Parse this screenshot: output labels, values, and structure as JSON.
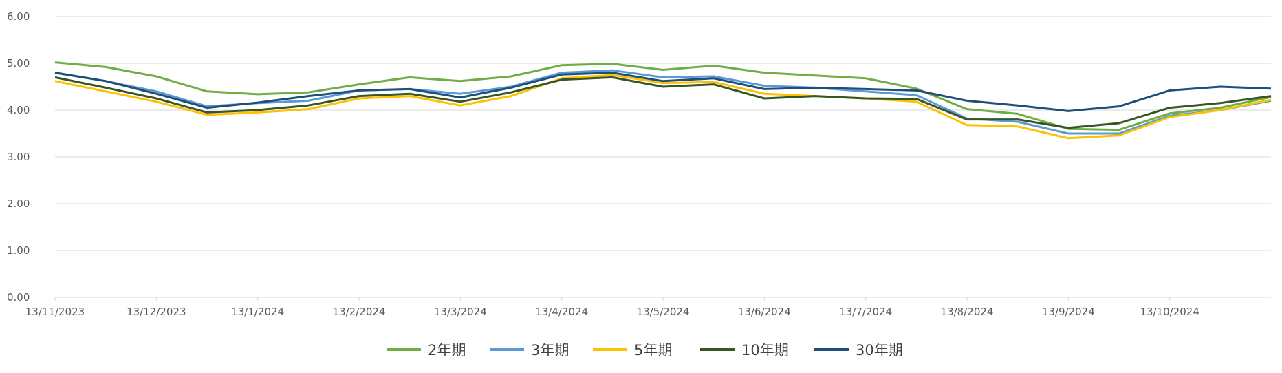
{
  "chart_data": {
    "type": "line",
    "title": "",
    "xlabel": "",
    "ylabel": "",
    "ylim": [
      0,
      6
    ],
    "y_ticks": [
      "0.00",
      "1.00",
      "2.00",
      "3.00",
      "4.00",
      "5.00",
      "6.00"
    ],
    "grid": true,
    "legend_position": "bottom",
    "x_ticks": [
      "13/11/2023",
      "13/12/2023",
      "13/1/2024",
      "13/2/2024",
      "13/3/2024",
      "13/4/2024",
      "13/5/2024",
      "13/6/2024",
      "13/7/2024",
      "13/8/2024",
      "13/9/2024",
      "13/10/2024"
    ],
    "x": [
      "13/11/2023",
      "27/11/2023",
      "13/12/2023",
      "27/12/2023",
      "13/1/2024",
      "27/1/2024",
      "13/2/2024",
      "27/2/2024",
      "13/3/2024",
      "27/3/2024",
      "13/4/2024",
      "27/4/2024",
      "13/5/2024",
      "27/5/2024",
      "13/6/2024",
      "27/6/2024",
      "13/7/2024",
      "27/7/2024",
      "13/8/2024",
      "27/8/2024",
      "13/9/2024",
      "27/9/2024",
      "13/10/2024",
      "27/10/2024",
      "12/11/2024"
    ],
    "series": [
      {
        "name": "2年期",
        "color": "#70ad47",
        "values": [
          5.02,
          4.92,
          4.72,
          4.4,
          4.34,
          4.38,
          4.55,
          4.7,
          4.62,
          4.72,
          4.96,
          4.99,
          4.86,
          4.95,
          4.8,
          4.74,
          4.68,
          4.46,
          4.02,
          3.92,
          3.6,
          3.58,
          3.93,
          4.05,
          4.28
        ]
      },
      {
        "name": "3年期",
        "color": "#5b9bd5",
        "values": [
          4.8,
          4.62,
          4.4,
          4.08,
          4.15,
          4.2,
          4.42,
          4.45,
          4.35,
          4.5,
          4.8,
          4.85,
          4.7,
          4.72,
          4.52,
          4.48,
          4.4,
          4.32,
          3.82,
          3.75,
          3.5,
          3.5,
          3.88,
          4.0,
          4.2
        ]
      },
      {
        "name": "5年期",
        "color": "#ffc000",
        "values": [
          4.62,
          4.4,
          4.18,
          3.9,
          3.95,
          4.02,
          4.25,
          4.3,
          4.1,
          4.3,
          4.68,
          4.75,
          4.58,
          4.6,
          4.35,
          4.3,
          4.25,
          4.18,
          3.68,
          3.65,
          3.4,
          3.46,
          3.85,
          4.0,
          4.22
        ]
      },
      {
        "name": "10年期",
        "color": "#375623",
        "values": [
          4.7,
          4.48,
          4.25,
          3.95,
          4.0,
          4.1,
          4.3,
          4.35,
          4.18,
          4.38,
          4.65,
          4.7,
          4.5,
          4.55,
          4.25,
          4.3,
          4.25,
          4.24,
          3.8,
          3.8,
          3.62,
          3.72,
          4.05,
          4.15,
          4.3
        ]
      },
      {
        "name": "30年期",
        "color": "#1f4e79",
        "values": [
          4.8,
          4.62,
          4.35,
          4.05,
          4.16,
          4.3,
          4.42,
          4.45,
          4.27,
          4.48,
          4.76,
          4.8,
          4.62,
          4.68,
          4.45,
          4.48,
          4.45,
          4.42,
          4.2,
          4.1,
          3.98,
          4.08,
          4.42,
          4.5,
          4.46
        ]
      }
    ]
  }
}
